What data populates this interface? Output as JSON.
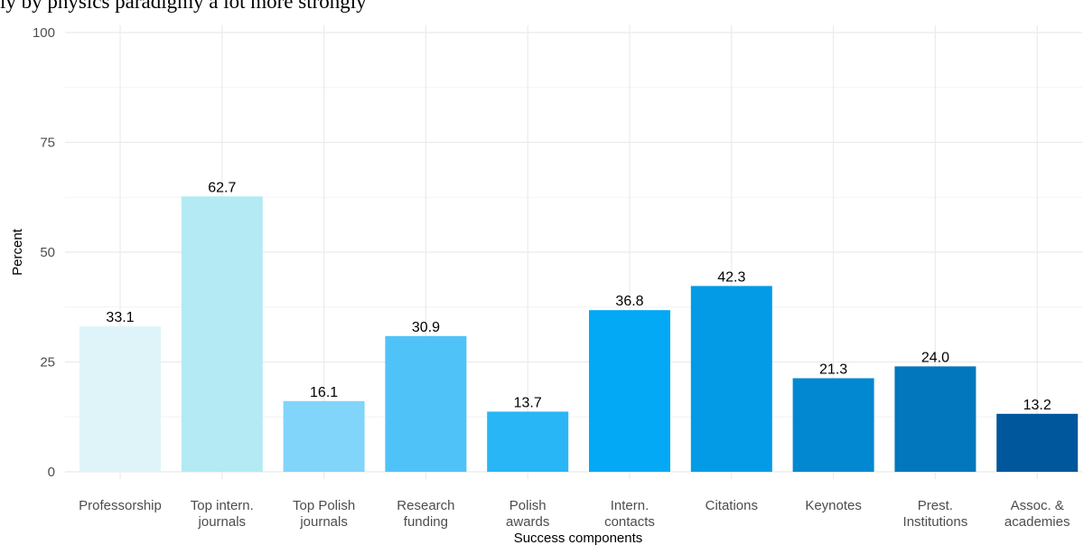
{
  "header_text": "ly by physics paradigmy a lot more strongly",
  "chart_data": {
    "type": "bar",
    "title": "",
    "xlabel": "Success components",
    "ylabel": "Percent",
    "ylim": [
      0,
      100
    ],
    "yticks": [
      0,
      25,
      50,
      75,
      100
    ],
    "grid": true,
    "legend": "none",
    "categories": [
      [
        "Professorship"
      ],
      [
        "Top intern.",
        "journals"
      ],
      [
        "Top Polish",
        "journals"
      ],
      [
        "Research",
        "funding"
      ],
      [
        "Polish",
        "awards"
      ],
      [
        "Intern.",
        "contacts"
      ],
      [
        "Citations"
      ],
      [
        "Keynotes"
      ],
      [
        "Prest.",
        "Institutions"
      ],
      [
        "Assoc. &",
        "academies"
      ]
    ],
    "values": [
      33.1,
      62.7,
      16.1,
      30.9,
      13.7,
      36.8,
      42.3,
      21.3,
      24.0,
      13.2
    ],
    "value_labels": [
      "33.1",
      "62.7",
      "16.1",
      "30.9",
      "13.7",
      "36.8",
      "42.3",
      "21.3",
      "24.0",
      "13.2"
    ],
    "colors": [
      "#dff4f8",
      "#b3eaf4",
      "#81d4fa",
      "#4fc3f7",
      "#29b6f6",
      "#03a9f4",
      "#039be5",
      "#0288d1",
      "#0277bd",
      "#01579b"
    ]
  }
}
